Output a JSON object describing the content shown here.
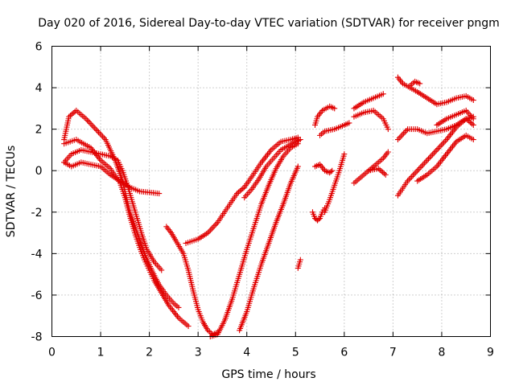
{
  "chart_data": {
    "type": "scatter",
    "title": "Day 020 of 2016, Sidereal Day-to-day VTEC variation (SDTVAR) for receiver pngm",
    "xlabel": "GPS time / hours",
    "ylabel": "SDTVAR / TECUs",
    "xlim": [
      0,
      9
    ],
    "ylim": [
      -8,
      6
    ],
    "xticks": [
      "0",
      "1",
      "2",
      "3",
      "4",
      "5",
      "6",
      "7",
      "8",
      "9"
    ],
    "yticks": [
      "-8",
      "-6",
      "-4",
      "-2",
      "0",
      "2",
      "4",
      "6"
    ],
    "grid": true,
    "marker": "+",
    "color": "#e00000",
    "series": [
      {
        "x": [
          0.25,
          0.35,
          0.5,
          0.7,
          0.9,
          1.1,
          1.3,
          1.45,
          1.6,
          1.75,
          1.9,
          2.05,
          2.2,
          2.35,
          2.5,
          2.6
        ],
        "y": [
          1.5,
          2.6,
          2.9,
          2.5,
          2.0,
          1.5,
          0.5,
          -0.5,
          -2.0,
          -3.0,
          -4.0,
          -4.8,
          -5.5,
          -6.0,
          -6.4,
          -6.6
        ]
      },
      {
        "x": [
          0.25,
          0.5,
          0.8,
          1.0,
          1.2,
          1.4,
          1.5,
          1.6,
          1.7,
          1.8,
          1.9,
          2.0,
          2.1,
          2.2,
          2.3,
          2.4,
          2.5,
          2.6,
          2.7,
          2.8
        ],
        "y": [
          1.3,
          1.5,
          1.1,
          0.5,
          0.1,
          -0.6,
          -1.3,
          -2.2,
          -3.0,
          -3.7,
          -4.3,
          -4.8,
          -5.3,
          -5.7,
          -6.1,
          -6.5,
          -6.8,
          -7.1,
          -7.3,
          -7.5
        ]
      },
      {
        "x": [
          0.25,
          0.4,
          0.6,
          0.8,
          1.0,
          1.2,
          1.35,
          1.45,
          1.55,
          1.65,
          1.75,
          1.85,
          1.95,
          2.1,
          2.25
        ],
        "y": [
          0.4,
          0.8,
          1.0,
          0.9,
          0.8,
          0.7,
          0.5,
          0.0,
          -0.7,
          -1.5,
          -2.3,
          -3.1,
          -3.8,
          -4.4,
          -4.8
        ]
      },
      {
        "x": [
          0.25,
          0.4,
          0.6,
          0.8,
          1.0,
          1.2,
          1.4,
          1.6,
          1.8,
          2.0,
          2.2
        ],
        "y": [
          0.4,
          0.2,
          0.4,
          0.3,
          0.2,
          -0.2,
          -0.5,
          -0.8,
          -1.0,
          -1.05,
          -1.1
        ]
      },
      {
        "x": [
          2.35,
          2.45,
          2.55,
          2.7,
          2.8,
          2.9,
          3.0,
          3.1,
          3.2,
          3.3,
          3.4
        ],
        "y": [
          -2.7,
          -3.0,
          -3.4,
          -4.0,
          -4.8,
          -5.8,
          -6.7,
          -7.3,
          -7.7,
          -7.9,
          -7.8
        ]
      },
      {
        "x": [
          2.75,
          3.0,
          3.2,
          3.4,
          3.6,
          3.8,
          3.95,
          4.1,
          4.3,
          4.5,
          4.7,
          4.9,
          5.05
        ],
        "y": [
          -3.5,
          -3.3,
          -3.0,
          -2.5,
          -1.8,
          -1.1,
          -0.8,
          -0.3,
          0.4,
          1.0,
          1.4,
          1.5,
          1.6
        ]
      },
      {
        "x": [
          3.25,
          3.4,
          3.55,
          3.7,
          3.85,
          4.0,
          4.15,
          4.3,
          4.45,
          4.6,
          4.75,
          4.9,
          5.05
        ],
        "y": [
          -8.0,
          -7.9,
          -7.2,
          -6.2,
          -5.0,
          -3.8,
          -2.7,
          -1.6,
          -0.7,
          0.1,
          0.7,
          1.1,
          1.3
        ]
      },
      {
        "x": [
          3.85,
          4.0,
          4.15,
          4.3,
          4.45,
          4.6,
          4.75,
          4.9,
          5.05
        ],
        "y": [
          -7.7,
          -6.8,
          -5.6,
          -4.5,
          -3.5,
          -2.5,
          -1.6,
          -0.6,
          0.2
        ]
      },
      {
        "x": [
          3.95,
          4.1,
          4.25,
          4.4,
          4.55,
          4.7,
          4.85,
          5.0,
          5.1
        ],
        "y": [
          -1.3,
          -0.9,
          -0.4,
          0.2,
          0.6,
          1.0,
          1.2,
          1.4,
          1.5
        ]
      },
      {
        "x": [
          5.05,
          5.1
        ],
        "y": [
          -4.7,
          -4.3
        ]
      },
      {
        "x": [
          5.35,
          5.4,
          5.45,
          5.5,
          5.55,
          5.6
        ],
        "y": [
          -2.0,
          -2.3,
          -2.4,
          -2.3,
          -2.0,
          -1.8
        ]
      },
      {
        "x": [
          5.4,
          5.5,
          5.6,
          5.7,
          5.75
        ],
        "y": [
          0.2,
          0.3,
          0.0,
          -0.1,
          0.0
        ]
      },
      {
        "x": [
          5.4,
          5.45,
          5.55,
          5.7,
          5.8
        ],
        "y": [
          2.2,
          2.6,
          2.9,
          3.1,
          3.0
        ]
      },
      {
        "x": [
          5.5,
          5.6,
          5.8,
          6.0,
          6.1
        ],
        "y": [
          1.7,
          1.9,
          2.0,
          2.2,
          2.3
        ]
      },
      {
        "x": [
          5.6,
          5.7,
          5.8,
          5.9,
          6.0
        ],
        "y": [
          -2.0,
          -1.4,
          -0.7,
          0.0,
          0.8
        ]
      },
      {
        "x": [
          6.2,
          6.4,
          6.6,
          6.8,
          6.9
        ],
        "y": [
          -0.6,
          -0.2,
          0.2,
          0.6,
          0.9
        ]
      },
      {
        "x": [
          6.2,
          6.4,
          6.6,
          6.8
        ],
        "y": [
          3.0,
          3.3,
          3.5,
          3.7
        ]
      },
      {
        "x": [
          6.2,
          6.4,
          6.6,
          6.8,
          6.9
        ],
        "y": [
          2.6,
          2.8,
          2.9,
          2.5,
          2.0
        ]
      },
      {
        "x": [
          6.5,
          6.7,
          6.85
        ],
        "y": [
          0.0,
          0.1,
          -0.2
        ]
      },
      {
        "x": [
          7.1,
          7.2,
          7.35,
          7.5,
          7.7,
          7.9,
          8.1,
          8.3,
          8.5,
          8.65
        ],
        "y": [
          4.5,
          4.2,
          4.0,
          3.8,
          3.5,
          3.2,
          3.3,
          3.5,
          3.6,
          3.4
        ]
      },
      {
        "x": [
          7.35,
          7.45,
          7.55
        ],
        "y": [
          4.1,
          4.3,
          4.2
        ]
      },
      {
        "x": [
          7.1,
          7.3,
          7.5,
          7.7,
          7.9,
          8.1,
          8.3,
          8.5,
          8.65
        ],
        "y": [
          1.5,
          2.0,
          2.0,
          1.8,
          1.9,
          2.0,
          2.2,
          2.5,
          2.6
        ]
      },
      {
        "x": [
          7.1,
          7.3,
          7.5,
          7.7,
          7.9,
          8.1,
          8.3,
          8.5,
          8.65
        ],
        "y": [
          -1.2,
          -0.5,
          0.0,
          0.5,
          1.0,
          1.5,
          2.1,
          2.5,
          2.2
        ]
      },
      {
        "x": [
          7.5,
          7.7,
          7.9,
          8.1,
          8.3,
          8.5,
          8.65
        ],
        "y": [
          -0.5,
          -0.2,
          0.2,
          0.8,
          1.4,
          1.7,
          1.5
        ]
      },
      {
        "x": [
          7.9,
          8.1,
          8.3,
          8.5,
          8.65
        ],
        "y": [
          2.2,
          2.5,
          2.7,
          2.9,
          2.5
        ]
      }
    ]
  }
}
